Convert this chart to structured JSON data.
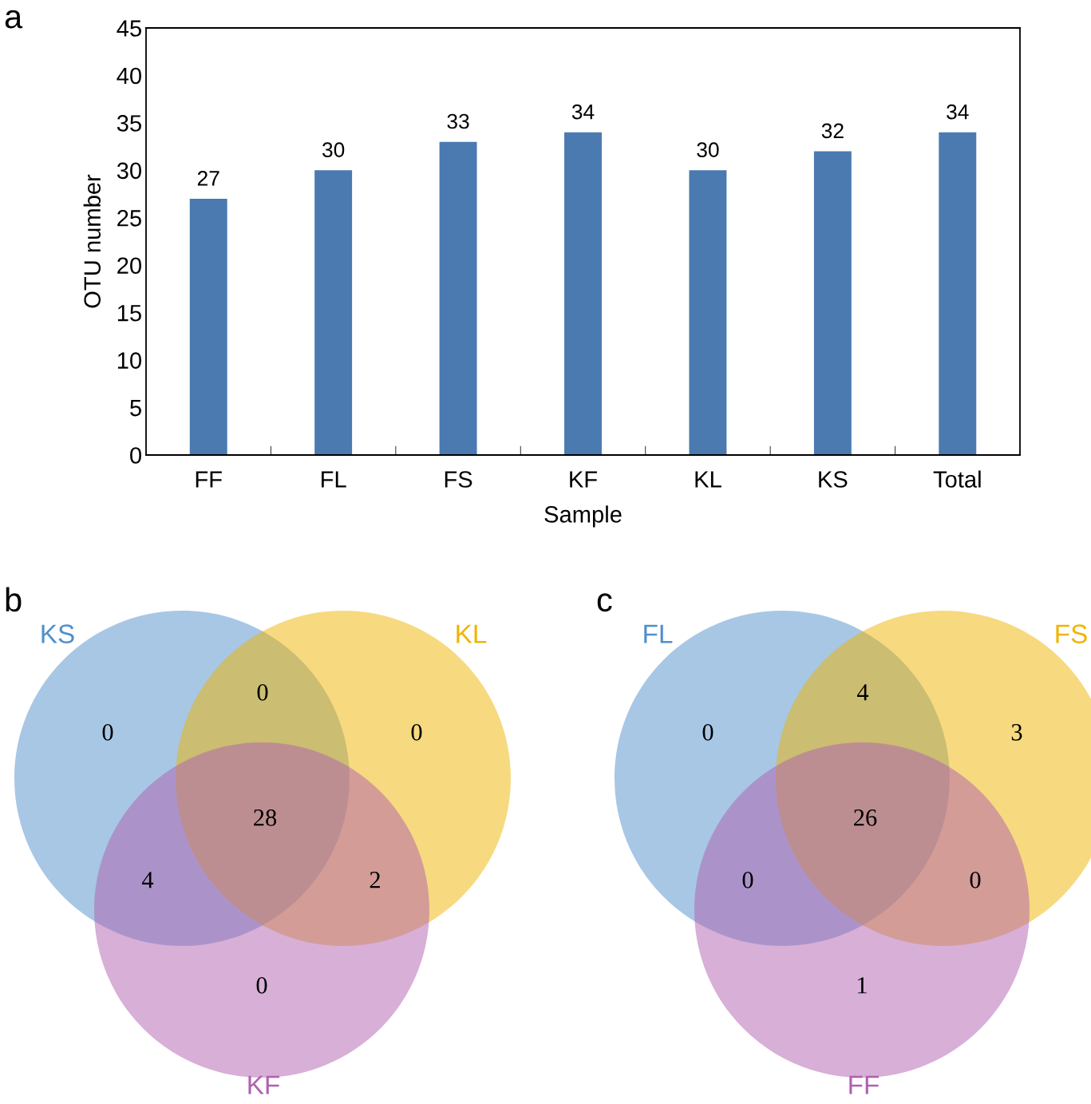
{
  "chart_data": [
    {
      "type": "bar",
      "title": "a",
      "xlabel": "Sample",
      "ylabel": "OTU number",
      "categories": [
        "FF",
        "FL",
        "FS",
        "KF",
        "KL",
        "KS",
        "Total"
      ],
      "values": [
        27,
        30,
        33,
        34,
        30,
        32,
        34
      ],
      "color": "#4a7ab0",
      "ylim": [
        0,
        45
      ],
      "yticks": [
        0,
        5,
        10,
        15,
        20,
        25,
        30,
        35,
        40,
        45
      ],
      "grid": false,
      "data_labels": true
    },
    {
      "type": "other",
      "title": "b",
      "categories": [
        "KS",
        "KL",
        "KF"
      ],
      "colors": [
        "#4f8fcc",
        "#f0b400",
        "#b060b0"
      ],
      "annotations": [
        "0",
        "0",
        "0",
        "0",
        "4",
        "2",
        "28"
      ]
    },
    {
      "type": "other",
      "title": "c",
      "categories": [
        "FL",
        "FS",
        "FF"
      ],
      "colors": [
        "#4f8fcc",
        "#f0b400",
        "#b060b0"
      ],
      "annotations": [
        "0",
        "3",
        "4",
        "1",
        "0",
        "0",
        "26"
      ]
    }
  ]
}
